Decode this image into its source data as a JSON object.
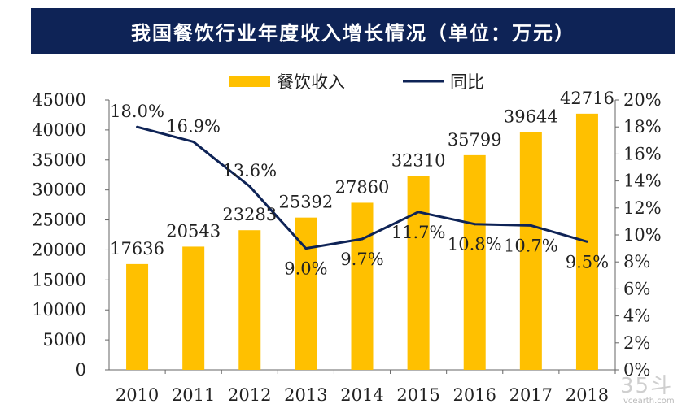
{
  "chart_data": {
    "type": "bar",
    "title": "我国餐饮行业年度收入增长情况（单位：万元）",
    "categories": [
      "2010",
      "2011",
      "2012",
      "2013",
      "2014",
      "2015",
      "2016",
      "2017",
      "2018"
    ],
    "series": [
      {
        "name": "餐饮收入",
        "type": "bar",
        "axis": "left",
        "color": "#ffc000",
        "values": [
          17636,
          20543,
          23283,
          25392,
          27860,
          32310,
          35799,
          39644,
          42716
        ],
        "labels": [
          "17636",
          "20543",
          "23283",
          "25392",
          "27860",
          "32310",
          "35799",
          "39644",
          "42716"
        ]
      },
      {
        "name": "同比",
        "type": "line",
        "axis": "right",
        "color": "#0e2356",
        "values": [
          18.0,
          16.9,
          13.6,
          9.0,
          9.7,
          11.7,
          10.8,
          10.7,
          9.5
        ],
        "labels": [
          "18.0%",
          "16.9%",
          "13.6%",
          "9.0%",
          "9.7%",
          "11.7%",
          "10.8%",
          "10.7%",
          "9.5%"
        ]
      }
    ],
    "y_left": {
      "min": 0,
      "max": 45000,
      "ticks": [
        "0",
        "5000",
        "10000",
        "15000",
        "20000",
        "25000",
        "30000",
        "35000",
        "40000",
        "45000"
      ]
    },
    "y_right": {
      "min": 0,
      "max": 20,
      "ticks": [
        "0%",
        "2%",
        "4%",
        "6%",
        "8%",
        "10%",
        "12%",
        "14%",
        "16%",
        "18%",
        "20%"
      ]
    },
    "legend_position": "top-center",
    "grid": false
  },
  "watermark": {
    "logo": "35斗",
    "url": "vcearth.com"
  }
}
